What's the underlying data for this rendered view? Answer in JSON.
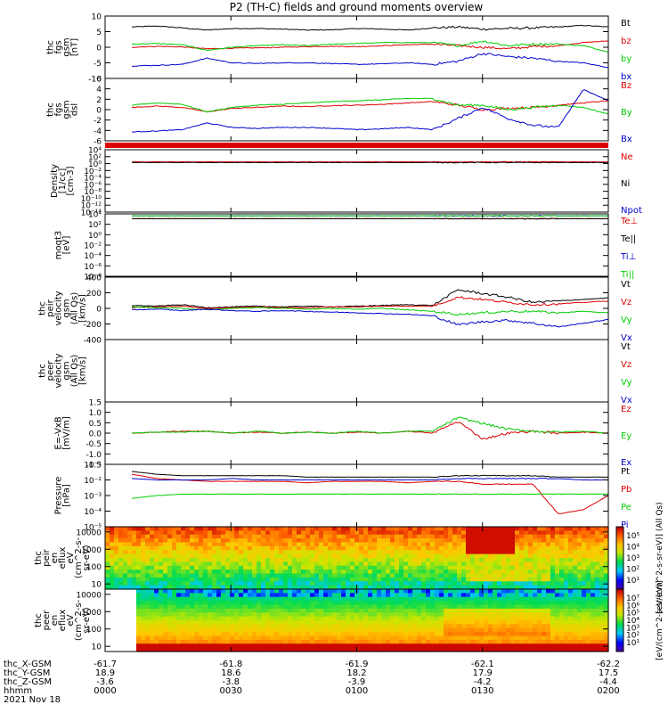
{
  "title": "P2 (TH-C) fields and ground moments overview",
  "date": "2021 Nov 18",
  "ephemeris": {
    "labels": [
      "thc_X-GSM",
      "thc_Y-GSM",
      "thc_Z-GSM",
      "hhmm"
    ],
    "columns": [
      {
        "x": "-61.7",
        "y": "18.9",
        "z": "-3.6",
        "t": "0000"
      },
      {
        "x": "-61.8",
        "y": "18.6",
        "z": "-3.8",
        "t": "0030"
      },
      {
        "x": "-61.9",
        "y": "18.2",
        "z": "-3.9",
        "t": "0100"
      },
      {
        "x": "-62.1",
        "y": "17.9",
        "z": "-4.2",
        "t": "0130"
      },
      {
        "x": "-62.2",
        "y": "17.5",
        "z": "-4.4",
        "t": "0200"
      }
    ]
  },
  "colors": {
    "black": "#000000",
    "red": "#dd0000",
    "green": "#00cc00",
    "blue": "#0000cc"
  },
  "chart_data": [
    {
      "type": "line",
      "ylabel": [
        "thc",
        "fgs",
        "gsm",
        "[nT]"
      ],
      "yticks": [
        "10",
        "5",
        "0",
        "-5",
        "-10"
      ],
      "ylim": [
        -10,
        10
      ],
      "series": [
        {
          "name": "Bt",
          "color": "black",
          "y": [
            6.5,
            6.8,
            6.2,
            5.5,
            6.0,
            6.0,
            5.8,
            5.5,
            5.6,
            6.0,
            5.8,
            5.5,
            6.2,
            6.5,
            5.8,
            6.0,
            6.2,
            6.5,
            7.0,
            6.5
          ]
        },
        {
          "name": "bz",
          "color": "red",
          "y": [
            0.0,
            0.3,
            0.1,
            -0.5,
            -0.3,
            -0.2,
            0.0,
            0.2,
            0.3,
            0.2,
            0.5,
            0.8,
            1.0,
            0.5,
            0.0,
            -0.5,
            0.2,
            0.5,
            1.5,
            2.0
          ]
        },
        {
          "name": "by",
          "color": "green",
          "y": [
            1.0,
            1.2,
            0.8,
            -1.0,
            0.0,
            0.5,
            0.8,
            0.5,
            1.0,
            1.2,
            1.5,
            1.5,
            1.5,
            0.5,
            2.0,
            0.5,
            1.0,
            1.0,
            0.5,
            -1.5
          ]
        },
        {
          "name": "bx",
          "color": "blue",
          "y": [
            -6.0,
            -5.8,
            -5.5,
            -3.5,
            -5.0,
            -5.2,
            -5.0,
            -5.0,
            -5.2,
            -5.5,
            -5.3,
            -5.0,
            -5.5,
            -4.5,
            -2.0,
            -3.0,
            -3.5,
            -4.5,
            -5.0,
            -6.5
          ]
        }
      ]
    },
    {
      "type": "line",
      "ylabel": [
        "thc",
        "fgs",
        "gsm",
        "dsl"
      ],
      "yticks": [
        "6",
        "4",
        "2",
        "0",
        "-2",
        "-4",
        "-6"
      ],
      "ylim": [
        -7,
        7
      ],
      "series": [
        {
          "name": "Bz",
          "color": "red",
          "y": [
            0.5,
            0.8,
            0.5,
            -0.5,
            0.3,
            0.5,
            0.8,
            0.7,
            0.9,
            1.0,
            1.2,
            1.5,
            1.8,
            1.0,
            0.0,
            0.3,
            0.5,
            1.0,
            1.5,
            2.0
          ]
        },
        {
          "name": "By",
          "color": "green",
          "y": [
            1.0,
            1.5,
            1.2,
            -0.5,
            0.5,
            1.0,
            1.2,
            1.5,
            1.8,
            2.0,
            2.2,
            2.5,
            2.5,
            1.0,
            1.0,
            0.0,
            0.5,
            1.0,
            0.5,
            -1.0
          ]
        },
        {
          "name": "Bx",
          "color": "blue",
          "y": [
            -5.0,
            -4.8,
            -4.5,
            -3.0,
            -4.0,
            -4.2,
            -4.0,
            -4.0,
            -4.2,
            -4.5,
            -4.3,
            -4.0,
            -4.5,
            -2.0,
            0.5,
            -2.0,
            -3.5,
            -4.0,
            4.5,
            2.0
          ]
        }
      ]
    },
    {
      "type": "line",
      "ylabel": [
        "Density",
        "[1/cc]",
        "[cm-3]"
      ],
      "yticks": [
        "10⁴",
        "10²",
        "10⁰",
        "10⁻²",
        "10⁻⁴",
        "10⁻⁶",
        "10⁻⁸",
        "10⁻¹⁰",
        "10⁻¹²",
        "10⁻¹⁴"
      ],
      "ylim": [
        -14,
        4
      ],
      "log": true,
      "series": [
        {
          "name": "Ne",
          "color": "red",
          "y": [
            0.5,
            0.5,
            0.5,
            0.5,
            0.5,
            0.5,
            0.5,
            0.5,
            0.5,
            0.5,
            0.5,
            0.5,
            0.5,
            0.5,
            0.5,
            0.5,
            0.5,
            0.5,
            0.5,
            0.5
          ]
        },
        {
          "name": "Ni",
          "color": "black",
          "y": [
            0.3,
            0.3,
            0.3,
            0.3,
            0.3,
            0.3,
            0.3,
            0.3,
            0.3,
            0.3,
            0.3,
            0.3,
            0.3,
            0.3,
            0.3,
            0.3,
            0.3,
            0.3,
            0.3,
            0.3
          ]
        },
        {
          "name": "Npot",
          "color": "blue",
          "y": []
        }
      ]
    },
    {
      "type": "line",
      "ylabel": [
        "moqt3",
        "[eV]"
      ],
      "yticks": [
        "10⁴",
        "10²",
        "10⁰",
        "10⁻²",
        "10⁻⁴",
        "10⁻⁶",
        "10⁻⁸"
      ],
      "ylim": [
        -9,
        4
      ],
      "log": true,
      "series": [
        {
          "name": "Te⊥",
          "color": "red",
          "y": [
            3.0,
            3.0,
            3.0,
            3.0,
            3.0,
            3.0,
            3.0,
            3.0,
            3.0,
            3.0,
            3.0,
            3.0,
            3.0,
            3.0,
            3.0,
            3.0,
            3.0,
            3.0,
            3.0,
            3.0
          ]
        },
        {
          "name": "Te||",
          "color": "black",
          "y": [
            3.0,
            3.0,
            3.0,
            3.0,
            3.0,
            3.0,
            3.0,
            3.0,
            3.0,
            3.0,
            3.0,
            3.0,
            3.0,
            3.0,
            3.0,
            3.0,
            3.0,
            3.0,
            3.0,
            3.0
          ]
        },
        {
          "name": "Ti⊥",
          "color": "blue",
          "y": [
            3.6,
            3.6,
            3.6,
            3.6,
            3.6,
            3.6,
            3.6,
            3.6,
            3.6,
            3.6,
            3.6,
            3.6,
            3.6,
            3.6,
            3.6,
            3.6,
            3.6,
            3.6,
            3.6,
            3.6
          ]
        },
        {
          "name": "Ti||",
          "color": "green",
          "y": [
            3.6,
            3.6,
            3.6,
            3.6,
            3.6,
            3.6,
            3.6,
            3.6,
            3.6,
            3.6,
            3.6,
            3.6,
            3.6,
            3.6,
            3.6,
            3.6,
            3.6,
            3.6,
            3.6,
            3.6
          ]
        }
      ]
    },
    {
      "type": "line",
      "ylabel": [
        "thc",
        "peir",
        "velocity",
        "gsm",
        "(All Qs)",
        "[km/s]"
      ],
      "yticks": [
        "400",
        "200",
        "0",
        "-200",
        "-400"
      ],
      "ylim": [
        -420,
        420
      ],
      "series": [
        {
          "name": "Vt",
          "color": "black",
          "y": [
            40,
            30,
            50,
            10,
            20,
            30,
            20,
            30,
            20,
            30,
            40,
            50,
            40,
            250,
            200,
            150,
            80,
            100,
            120,
            140
          ]
        },
        {
          "name": "Vz",
          "color": "red",
          "y": [
            10,
            20,
            30,
            0,
            10,
            20,
            10,
            10,
            20,
            20,
            30,
            30,
            30,
            150,
            120,
            80,
            50,
            60,
            80,
            100
          ]
        },
        {
          "name": "Vy",
          "color": "green",
          "y": [
            20,
            10,
            0,
            -20,
            0,
            10,
            0,
            -10,
            0,
            -10,
            0,
            -20,
            -40,
            -80,
            -60,
            -40,
            -40,
            -60,
            -40,
            -60
          ]
        },
        {
          "name": "Vx",
          "color": "blue",
          "y": [
            -20,
            -10,
            -30,
            -10,
            -30,
            -40,
            -30,
            -40,
            -50,
            -60,
            -70,
            -80,
            -100,
            -220,
            -180,
            -160,
            -200,
            -250,
            -200,
            -150
          ]
        }
      ]
    },
    {
      "type": "line",
      "ylabel": [
        "thc",
        "peer",
        "velocity",
        "gsm",
        "(All Qs)",
        "[km/s]"
      ],
      "yticks": [],
      "ylim": [
        -1,
        1
      ],
      "series": [
        {
          "name": "Vt",
          "color": "black",
          "y": []
        },
        {
          "name": "Vz",
          "color": "red",
          "y": []
        },
        {
          "name": "Vy",
          "color": "green",
          "y": []
        },
        {
          "name": "Vx",
          "color": "blue",
          "y": []
        }
      ]
    },
    {
      "type": "line",
      "ylabel": [
        "E=-VxB",
        "[mV/m]"
      ],
      "yticks": [
        "1.5",
        "1.0",
        "0.5",
        "0.0",
        "-0.5",
        "-1.0",
        "-1.5"
      ],
      "ylim": [
        -1.6,
        1.6
      ],
      "series": [
        {
          "name": "Ez",
          "color": "red",
          "y": [
            0.0,
            0.05,
            0.1,
            0.1,
            0.0,
            0.05,
            0.0,
            0.05,
            0.0,
            0.05,
            0.0,
            0.1,
            0.0,
            0.6,
            -0.3,
            0.0,
            0.1,
            0.0,
            0.05,
            0.0
          ]
        },
        {
          "name": "Ey",
          "color": "green",
          "y": [
            0.0,
            0.05,
            0.05,
            0.1,
            0.0,
            0.1,
            0.0,
            0.05,
            0.0,
            0.1,
            0.0,
            0.1,
            0.1,
            0.8,
            0.5,
            0.2,
            0.1,
            0.05,
            0.1,
            0.0
          ]
        },
        {
          "name": "Ex",
          "color": "blue",
          "y": []
        }
      ]
    },
    {
      "type": "line",
      "ylabel": [
        "Pressure",
        "[nPa]"
      ],
      "yticks": [
        "10⁻¹",
        "10⁻²",
        "10⁻³",
        "10⁻⁴",
        "10⁻⁵"
      ],
      "ylim": [
        -5.2,
        -0.8
      ],
      "log": true,
      "series": [
        {
          "name": "Pt",
          "color": "black",
          "y": [
            -1.3,
            -1.5,
            -1.6,
            -1.6,
            -1.6,
            -1.6,
            -1.6,
            -1.7,
            -1.7,
            -1.7,
            -1.7,
            -1.7,
            -1.7,
            -1.6,
            -1.6,
            -1.6,
            -1.6,
            -1.7,
            -1.7,
            -1.7
          ]
        },
        {
          "name": "Pb",
          "color": "red",
          "y": [
            -1.5,
            -1.8,
            -1.9,
            -2.0,
            -2.0,
            -2.0,
            -2.0,
            -2.1,
            -2.0,
            -2.0,
            -2.0,
            -2.1,
            -2.0,
            -2.0,
            -2.2,
            -2.2,
            -2.2,
            -4.3,
            -4.0,
            -3.0
          ]
        },
        {
          "name": "Pe",
          "color": "green",
          "y": [
            -3.2,
            -3.0,
            -2.9,
            -2.9,
            -2.9,
            -2.9,
            -2.9,
            -2.9,
            -2.9,
            -2.9,
            -2.9,
            -2.9,
            -2.9,
            -2.9,
            -2.9,
            -2.9,
            -2.9,
            -2.9,
            -2.9,
            -2.9
          ]
        },
        {
          "name": "Pi",
          "color": "blue",
          "y": [
            -1.8,
            -1.9,
            -1.9,
            -1.9,
            -1.8,
            -1.9,
            -1.9,
            -1.9,
            -1.9,
            -1.9,
            -1.9,
            -1.9,
            -1.9,
            -1.8,
            -1.8,
            -1.8,
            -1.8,
            -1.8,
            -1.9,
            -1.9
          ]
        }
      ]
    },
    {
      "type": "heatmap",
      "ylabel": [
        "thc",
        "peir",
        "en",
        "eflux",
        "eV",
        "(cm^2-s-",
        "sr-eV)"
      ],
      "yticks": [
        "10000",
        "1000",
        "100",
        "10"
      ],
      "ylim": [
        0.7,
        4.3
      ],
      "log": true,
      "colorbar": {
        "label": "[eV/(cm^2-s-sr-eV)] (All Qs)",
        "ticks": [
          "10⁵",
          "10⁴",
          "10³",
          "10²",
          "10¹"
        ]
      }
    },
    {
      "type": "heatmap",
      "ylabel": [
        "thc",
        "peer",
        "en",
        "eflux",
        "eV",
        "(cm^2-s-",
        "sr-eV)"
      ],
      "yticks": [
        "10000",
        "1000",
        "100",
        "10"
      ],
      "ylim": [
        0.7,
        4.3
      ],
      "log": true,
      "colorbar": {
        "label": "[eV/(cm^2-s-sr-eV)]",
        "ticks": [
          "10⁷",
          "10⁶",
          "10⁵",
          "10⁴",
          "10³",
          "10²",
          "10¹"
        ]
      }
    }
  ]
}
